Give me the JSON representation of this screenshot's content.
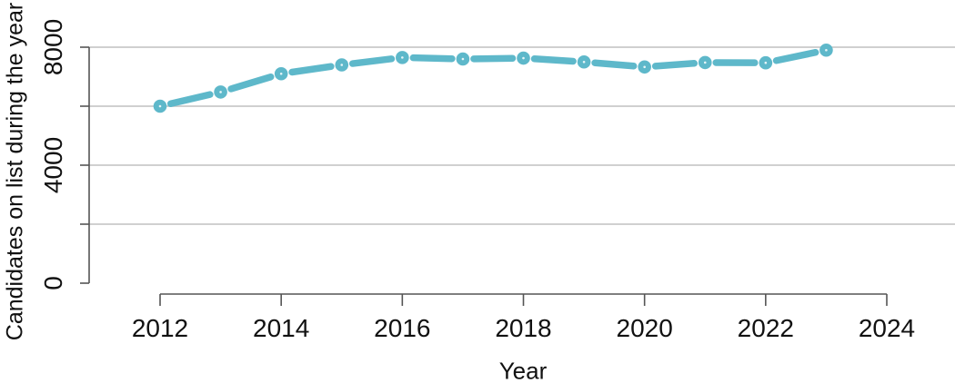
{
  "colors": {
    "line": "#5EB8CA",
    "marker": "#5EB8CA",
    "marker_center": "#FFFFFF",
    "grid": "#C9C9C9",
    "axis": "#555555",
    "text": "#111111",
    "background": "#FFFFFF"
  },
  "chart_data": {
    "type": "line",
    "title": "",
    "xlabel": "Year",
    "ylabel": "Candidates on list during the year",
    "x": [
      2012,
      2013,
      2014,
      2015,
      2016,
      2017,
      2018,
      2019,
      2020,
      2021,
      2022,
      2023
    ],
    "series": [
      {
        "name": "Candidates on list during the year",
        "values": [
          6000,
          6480,
          7100,
          7400,
          7650,
          7600,
          7630,
          7500,
          7330,
          7480,
          7470,
          7900
        ]
      }
    ],
    "xlim": [
      2012,
      2024
    ],
    "ylim": [
      0,
      8000
    ],
    "x_ticks": [
      2012,
      2014,
      2016,
      2018,
      2020,
      2022,
      2024
    ],
    "x_tick_labels": [
      "2012",
      "2014",
      "2016",
      "2018",
      "2020",
      "2022",
      "2024"
    ],
    "y_ticks": [
      0,
      2000,
      4000,
      6000,
      8000
    ],
    "y_tick_labels": [
      "0",
      "",
      "4000",
      "",
      "8000"
    ],
    "grid": {
      "horizontal_at": [
        2000,
        4000,
        6000,
        8000
      ]
    },
    "legend": "none",
    "style": {
      "marker": "filled-circle-with-center-dot",
      "line_type": "points-and-segments-with-gaps"
    }
  }
}
